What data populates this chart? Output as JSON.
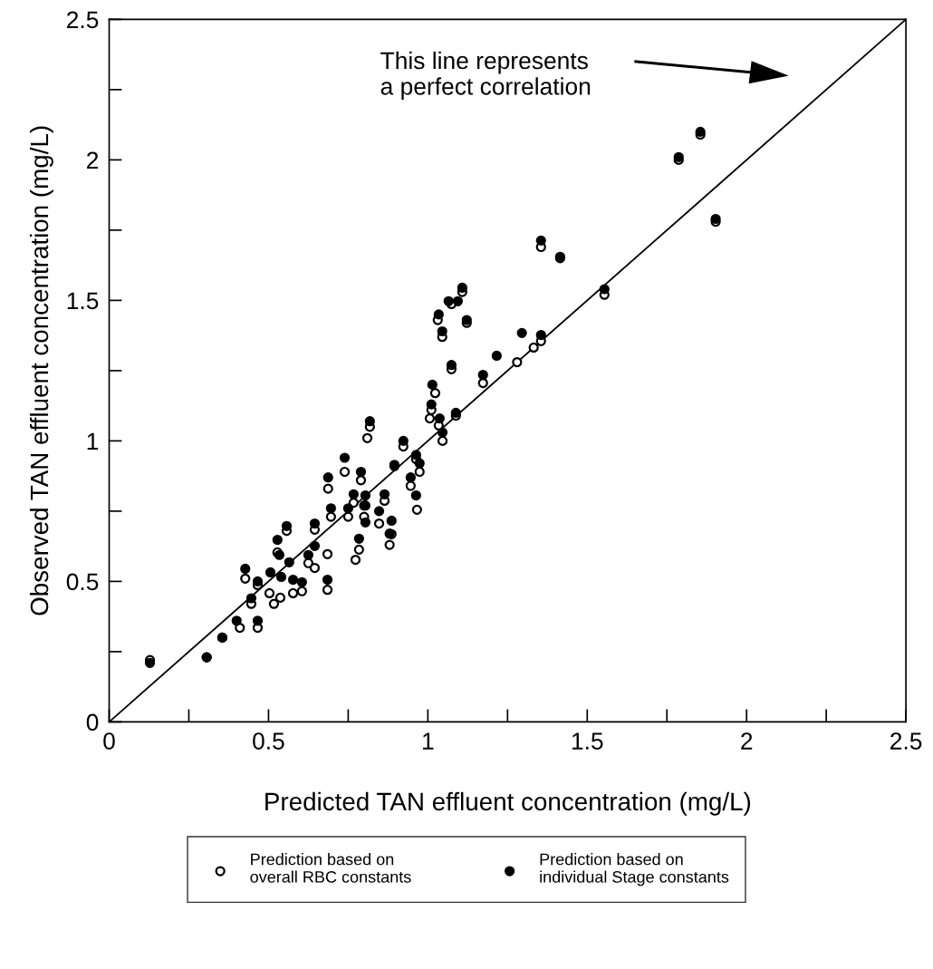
{
  "chart_data": {
    "type": "scatter",
    "xlabel": "Predicted TAN effluent concentration (mg/L)",
    "ylabel": "Observed TAN effluent concentration (mg/L)",
    "xlim": [
      0,
      2.5
    ],
    "ylim": [
      0,
      2.5
    ],
    "xticks": [
      0,
      {
        "value": 0.25,
        "label": null
      },
      0.5,
      {
        "value": 0.75,
        "label": null
      },
      1,
      {
        "value": 1.25,
        "label": null
      },
      1.5,
      {
        "value": 1.75,
        "label": null
      },
      2,
      {
        "value": 2.25,
        "label": null
      },
      2.5
    ],
    "yticks": [
      0,
      {
        "value": 0.25,
        "label": null
      },
      0.5,
      {
        "value": 0.75,
        "label": null
      },
      1,
      {
        "value": 1.25,
        "label": null
      },
      1.5,
      {
        "value": 1.75,
        "label": null
      },
      2,
      {
        "value": 2.25,
        "label": null
      },
      2.5
    ],
    "grid": false,
    "legend": "bottom",
    "marker": "circle",
    "series": [
      {
        "type": "line",
        "x": [
          0,
          2.5
        ],
        "values": [
          0,
          2.5
        ],
        "color": "#000000",
        "marker": "none",
        "line_style": "solid"
      },
      {
        "name": "Prediction based on\noverall RBC constants",
        "color": "#ffffff",
        "x": [
          0.128,
          0.306,
          0.355,
          0.41,
          0.466,
          0.427,
          0.446,
          0.466,
          0.528,
          0.557,
          0.503,
          0.517,
          0.537,
          0.577,
          0.605,
          0.625,
          0.645,
          0.645,
          0.685,
          0.685,
          0.784,
          0.773,
          0.687,
          0.739,
          0.818,
          0.81,
          0.79,
          0.8,
          0.88,
          0.895,
          0.923,
          0.946,
          0.974,
          0.966,
          0.767,
          0.75,
          0.696,
          0.963,
          0.864,
          0.847,
          0.886,
          0.804,
          1.023,
          1.006,
          1.034,
          1.046,
          1.088,
          1.173,
          1.415,
          1.554,
          1.355,
          1.332,
          1.28,
          1.787,
          1.855,
          1.903,
          1.108,
          1.074,
          1.031,
          1.122,
          1.045,
          1.355,
          1.074,
          1.011
        ],
        "values": [
          0.22,
          0.23,
          0.3,
          0.335,
          0.335,
          0.51,
          0.42,
          0.487,
          0.603,
          0.68,
          0.458,
          0.42,
          0.442,
          0.458,
          0.465,
          0.565,
          0.684,
          0.548,
          0.47,
          0.597,
          0.613,
          0.577,
          0.83,
          0.89,
          1.05,
          1.01,
          0.86,
          0.73,
          0.63,
          0.91,
          0.98,
          0.84,
          0.89,
          0.755,
          0.78,
          0.73,
          0.73,
          0.935,
          0.787,
          0.706,
          0.668,
          0.77,
          1.17,
          1.08,
          1.055,
          1.0,
          1.09,
          1.206,
          1.65,
          1.52,
          1.355,
          1.332,
          1.28,
          2.0,
          2.09,
          1.78,
          1.53,
          1.487,
          1.43,
          1.42,
          1.37,
          1.69,
          1.255,
          1.11
        ]
      },
      {
        "name": "Prediction based on\nindividual Stage constants",
        "color": "#000000",
        "x": [
          0.128,
          0.306,
          0.355,
          0.4,
          0.466,
          0.427,
          0.446,
          0.466,
          0.528,
          0.557,
          0.534,
          0.565,
          0.506,
          0.54,
          0.577,
          0.605,
          0.625,
          0.645,
          0.645,
          0.685,
          0.784,
          0.687,
          0.739,
          0.818,
          0.79,
          0.8,
          0.88,
          0.895,
          0.923,
          0.946,
          0.974,
          0.767,
          0.75,
          0.696,
          0.963,
          0.963,
          0.864,
          0.847,
          0.886,
          0.804,
          0.804,
          1.014,
          1.011,
          1.037,
          1.046,
          1.088,
          1.173,
          1.415,
          1.554,
          1.355,
          1.295,
          1.216,
          1.787,
          1.855,
          1.903,
          1.108,
          1.094,
          1.065,
          1.034,
          1.122,
          1.045,
          1.355,
          1.074
        ],
        "values": [
          0.21,
          0.23,
          0.3,
          0.36,
          0.36,
          0.545,
          0.44,
          0.5,
          0.648,
          0.697,
          0.594,
          0.568,
          0.532,
          0.516,
          0.506,
          0.497,
          0.594,
          0.706,
          0.626,
          0.506,
          0.652,
          0.87,
          0.94,
          1.07,
          0.89,
          0.77,
          0.67,
          0.915,
          1.0,
          0.87,
          0.92,
          0.81,
          0.76,
          0.76,
          0.95,
          0.806,
          0.81,
          0.75,
          0.716,
          0.806,
          0.71,
          1.2,
          1.13,
          1.08,
          1.03,
          1.1,
          1.235,
          1.655,
          1.54,
          1.377,
          1.384,
          1.303,
          2.01,
          2.1,
          1.79,
          1.545,
          1.497,
          1.497,
          1.45,
          1.43,
          1.39,
          1.713,
          1.27
        ]
      }
    ],
    "annotations": [
      "This line represents\na perfect correlation"
    ]
  }
}
